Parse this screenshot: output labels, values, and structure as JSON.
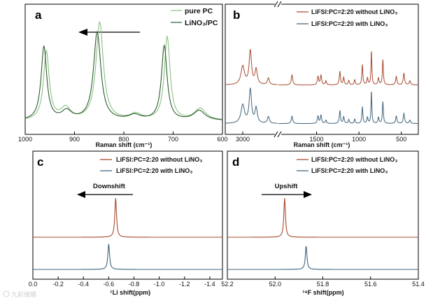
{
  "colors": {
    "pure": "#8cc084",
    "lino3": "#2e5a2e",
    "without": "#a64a2e",
    "with": "#41647c"
  },
  "watermark": "九彩维娜",
  "chart_data": [
    {
      "id": "a",
      "panel_label": "a",
      "type": "line",
      "xlabel": "Raman shift (cm⁻¹)",
      "xlim": [
        1000,
        600
      ],
      "xticks": [
        1000,
        900,
        800,
        700,
        600
      ],
      "reversed_x": true,
      "arrow_direction": "left",
      "series": [
        {
          "name": "pure PC",
          "color": "#8cc084",
          "peaks": [
            [
              957,
              0.7,
              7
            ],
            [
              918,
              0.12,
              12
            ],
            [
              849,
              1.0,
              9
            ],
            [
              776,
              0.06,
              14
            ],
            [
              712,
              0.85,
              7
            ],
            [
              645,
              0.12,
              14
            ]
          ],
          "baseline": 0.08
        },
        {
          "name": "LiNO₃/PC",
          "color": "#2e5a2e",
          "peaks": [
            [
              962,
              0.75,
              7
            ],
            [
              916,
              0.09,
              12
            ],
            [
              854,
              0.9,
              9
            ],
            [
              778,
              0.05,
              14
            ],
            [
              718,
              0.76,
              7
            ],
            [
              647,
              0.1,
              14
            ]
          ],
          "baseline": 0.08
        }
      ]
    },
    {
      "id": "b",
      "panel_label": "b",
      "type": "line",
      "xlabel": "Raman shift (cm⁻¹)",
      "xticks": [
        3000,
        1500,
        1000,
        500
      ],
      "x_segments": [
        [
          3150,
          2700
        ],
        [
          1950,
          300
        ]
      ],
      "series": [
        {
          "name": "LiFSI:PC=2:20 without LiNO₃",
          "color": "#a64a2e",
          "offset": 1.15,
          "peaks": [
            [
              3000,
              0.55,
              18
            ],
            [
              2935,
              1.0,
              12
            ],
            [
              2885,
              0.45,
              12
            ],
            [
              2780,
              0.2,
              10
            ],
            [
              1790,
              0.3,
              10
            ],
            [
              1483,
              0.25,
              9
            ],
            [
              1448,
              0.28,
              9
            ],
            [
              1390,
              0.12,
              8
            ],
            [
              1225,
              0.4,
              8
            ],
            [
              1180,
              0.22,
              8
            ],
            [
              1120,
              0.13,
              8
            ],
            [
              1050,
              0.15,
              8
            ],
            [
              960,
              0.6,
              7
            ],
            [
              900,
              0.2,
              8
            ],
            [
              853,
              1.0,
              6
            ],
            [
              770,
              0.2,
              8
            ],
            [
              718,
              0.75,
              7
            ],
            [
              560,
              0.25,
              9
            ],
            [
              470,
              0.35,
              9
            ],
            [
              400,
              0.12,
              10
            ]
          ]
        },
        {
          "name": "LiFSI:PC=2:20 with LiNO₃",
          "color": "#41647c",
          "offset": 0.0,
          "peaks": [
            [
              3000,
              0.55,
              18
            ],
            [
              2935,
              1.0,
              12
            ],
            [
              2885,
              0.45,
              12
            ],
            [
              2780,
              0.2,
              10
            ],
            [
              1790,
              0.22,
              10
            ],
            [
              1483,
              0.22,
              9
            ],
            [
              1448,
              0.24,
              9
            ],
            [
              1390,
              0.1,
              8
            ],
            [
              1225,
              0.38,
              8
            ],
            [
              1180,
              0.2,
              8
            ],
            [
              1120,
              0.12,
              8
            ],
            [
              1050,
              0.13,
              8
            ],
            [
              960,
              0.5,
              7
            ],
            [
              900,
              0.18,
              8
            ],
            [
              853,
              0.95,
              6
            ],
            [
              770,
              0.18,
              8
            ],
            [
              718,
              0.65,
              7
            ],
            [
              560,
              0.22,
              9
            ],
            [
              470,
              0.3,
              9
            ],
            [
              400,
              0.1,
              10
            ]
          ]
        }
      ]
    },
    {
      "id": "c",
      "panel_label": "c",
      "type": "line",
      "xlabel": "⁷Li shift(ppm)",
      "xlim": [
        0.0,
        -1.5
      ],
      "xticks": [
        0.0,
        -0.2,
        -0.4,
        -0.6,
        -0.8,
        -1.0,
        -1.2,
        -1.4
      ],
      "annotation": "Downshift",
      "arrow_direction": "left",
      "series": [
        {
          "name": "LiFSI:PC=2:20 without LiNO₃",
          "color": "#a64a2e",
          "offset": 1.0,
          "peaks": [
            [
              -0.655,
              1.0,
              0.008
            ]
          ]
        },
        {
          "name": "LiFSI:PC=2:20 with LiNO₃",
          "color": "#41647c",
          "offset": 0.0,
          "peaks": [
            [
              -0.6,
              0.65,
              0.008
            ]
          ]
        }
      ]
    },
    {
      "id": "d",
      "panel_label": "d",
      "type": "line",
      "xlabel": "¹⁹F shift(ppm)",
      "xlim": [
        52.2,
        51.4
      ],
      "xticks": [
        52.2,
        52.0,
        51.8,
        51.6,
        51.4
      ],
      "annotation": "Upshift",
      "arrow_direction": "right",
      "series": [
        {
          "name": "LiFSI:PC=2:20 without LiNO₃",
          "color": "#a64a2e",
          "offset": 1.0,
          "peaks": [
            [
              51.96,
              1.0,
              0.004
            ]
          ]
        },
        {
          "name": "LiFSI:PC=2:20 with LiNO₃",
          "color": "#41647c",
          "offset": 0.0,
          "peaks": [
            [
              51.87,
              0.6,
              0.004
            ]
          ]
        }
      ]
    }
  ]
}
